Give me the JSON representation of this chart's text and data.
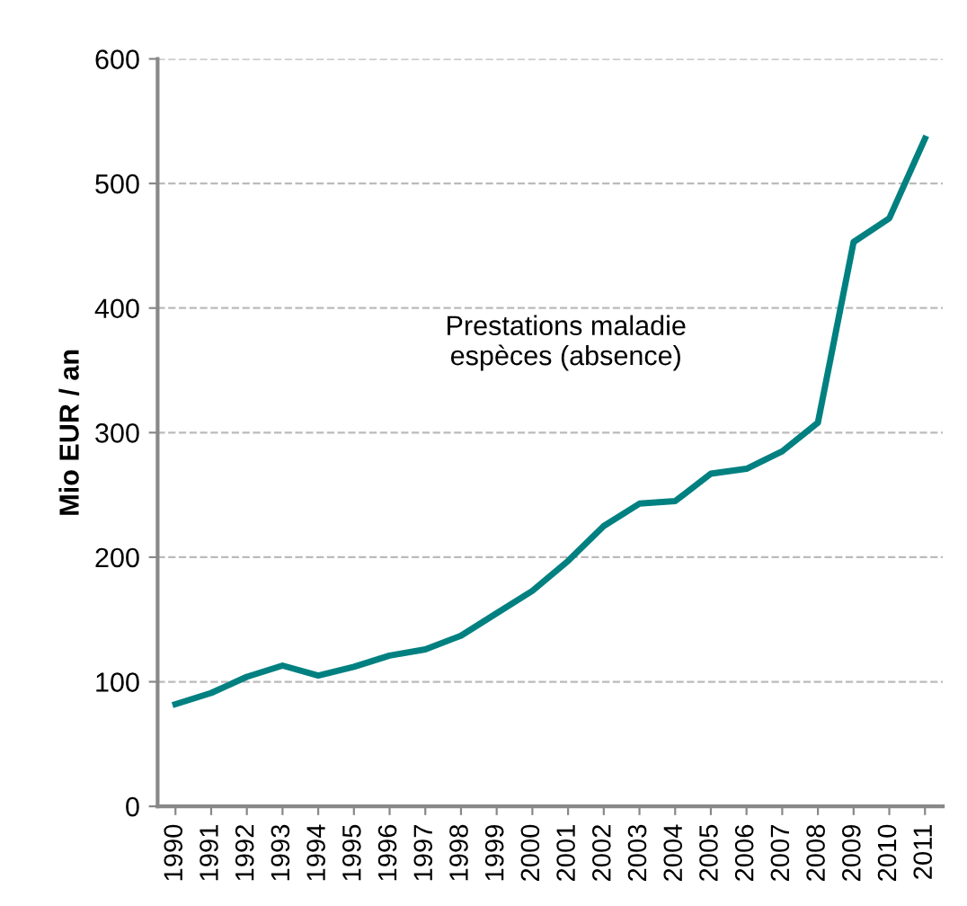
{
  "chart_data": {
    "type": "line",
    "ylabel": "Mio EUR / an",
    "categories": [
      "1990",
      "1991",
      "1992",
      "1993",
      "1994",
      "1995",
      "1996",
      "1997",
      "1998",
      "1999",
      "2000",
      "2001",
      "2002",
      "2003",
      "2004",
      "2005",
      "2006",
      "2007",
      "2008",
      "2009",
      "2010",
      "2011"
    ],
    "series": [
      {
        "color": "#008080",
        "values": [
          82,
          91,
          104,
          113,
          105,
          112,
          121,
          126,
          137,
          155,
          173,
          197,
          225,
          243,
          245,
          267,
          271,
          285,
          308,
          453,
          472,
          536
        ]
      }
    ],
    "ylim": [
      0,
      600
    ],
    "yticks": [
      0,
      100,
      200,
      300,
      400,
      500,
      600
    ],
    "grid": "y",
    "marker": "none",
    "line_style": "solid",
    "annotations": [
      "Prestations maladie\nespèces (absence)"
    ]
  }
}
